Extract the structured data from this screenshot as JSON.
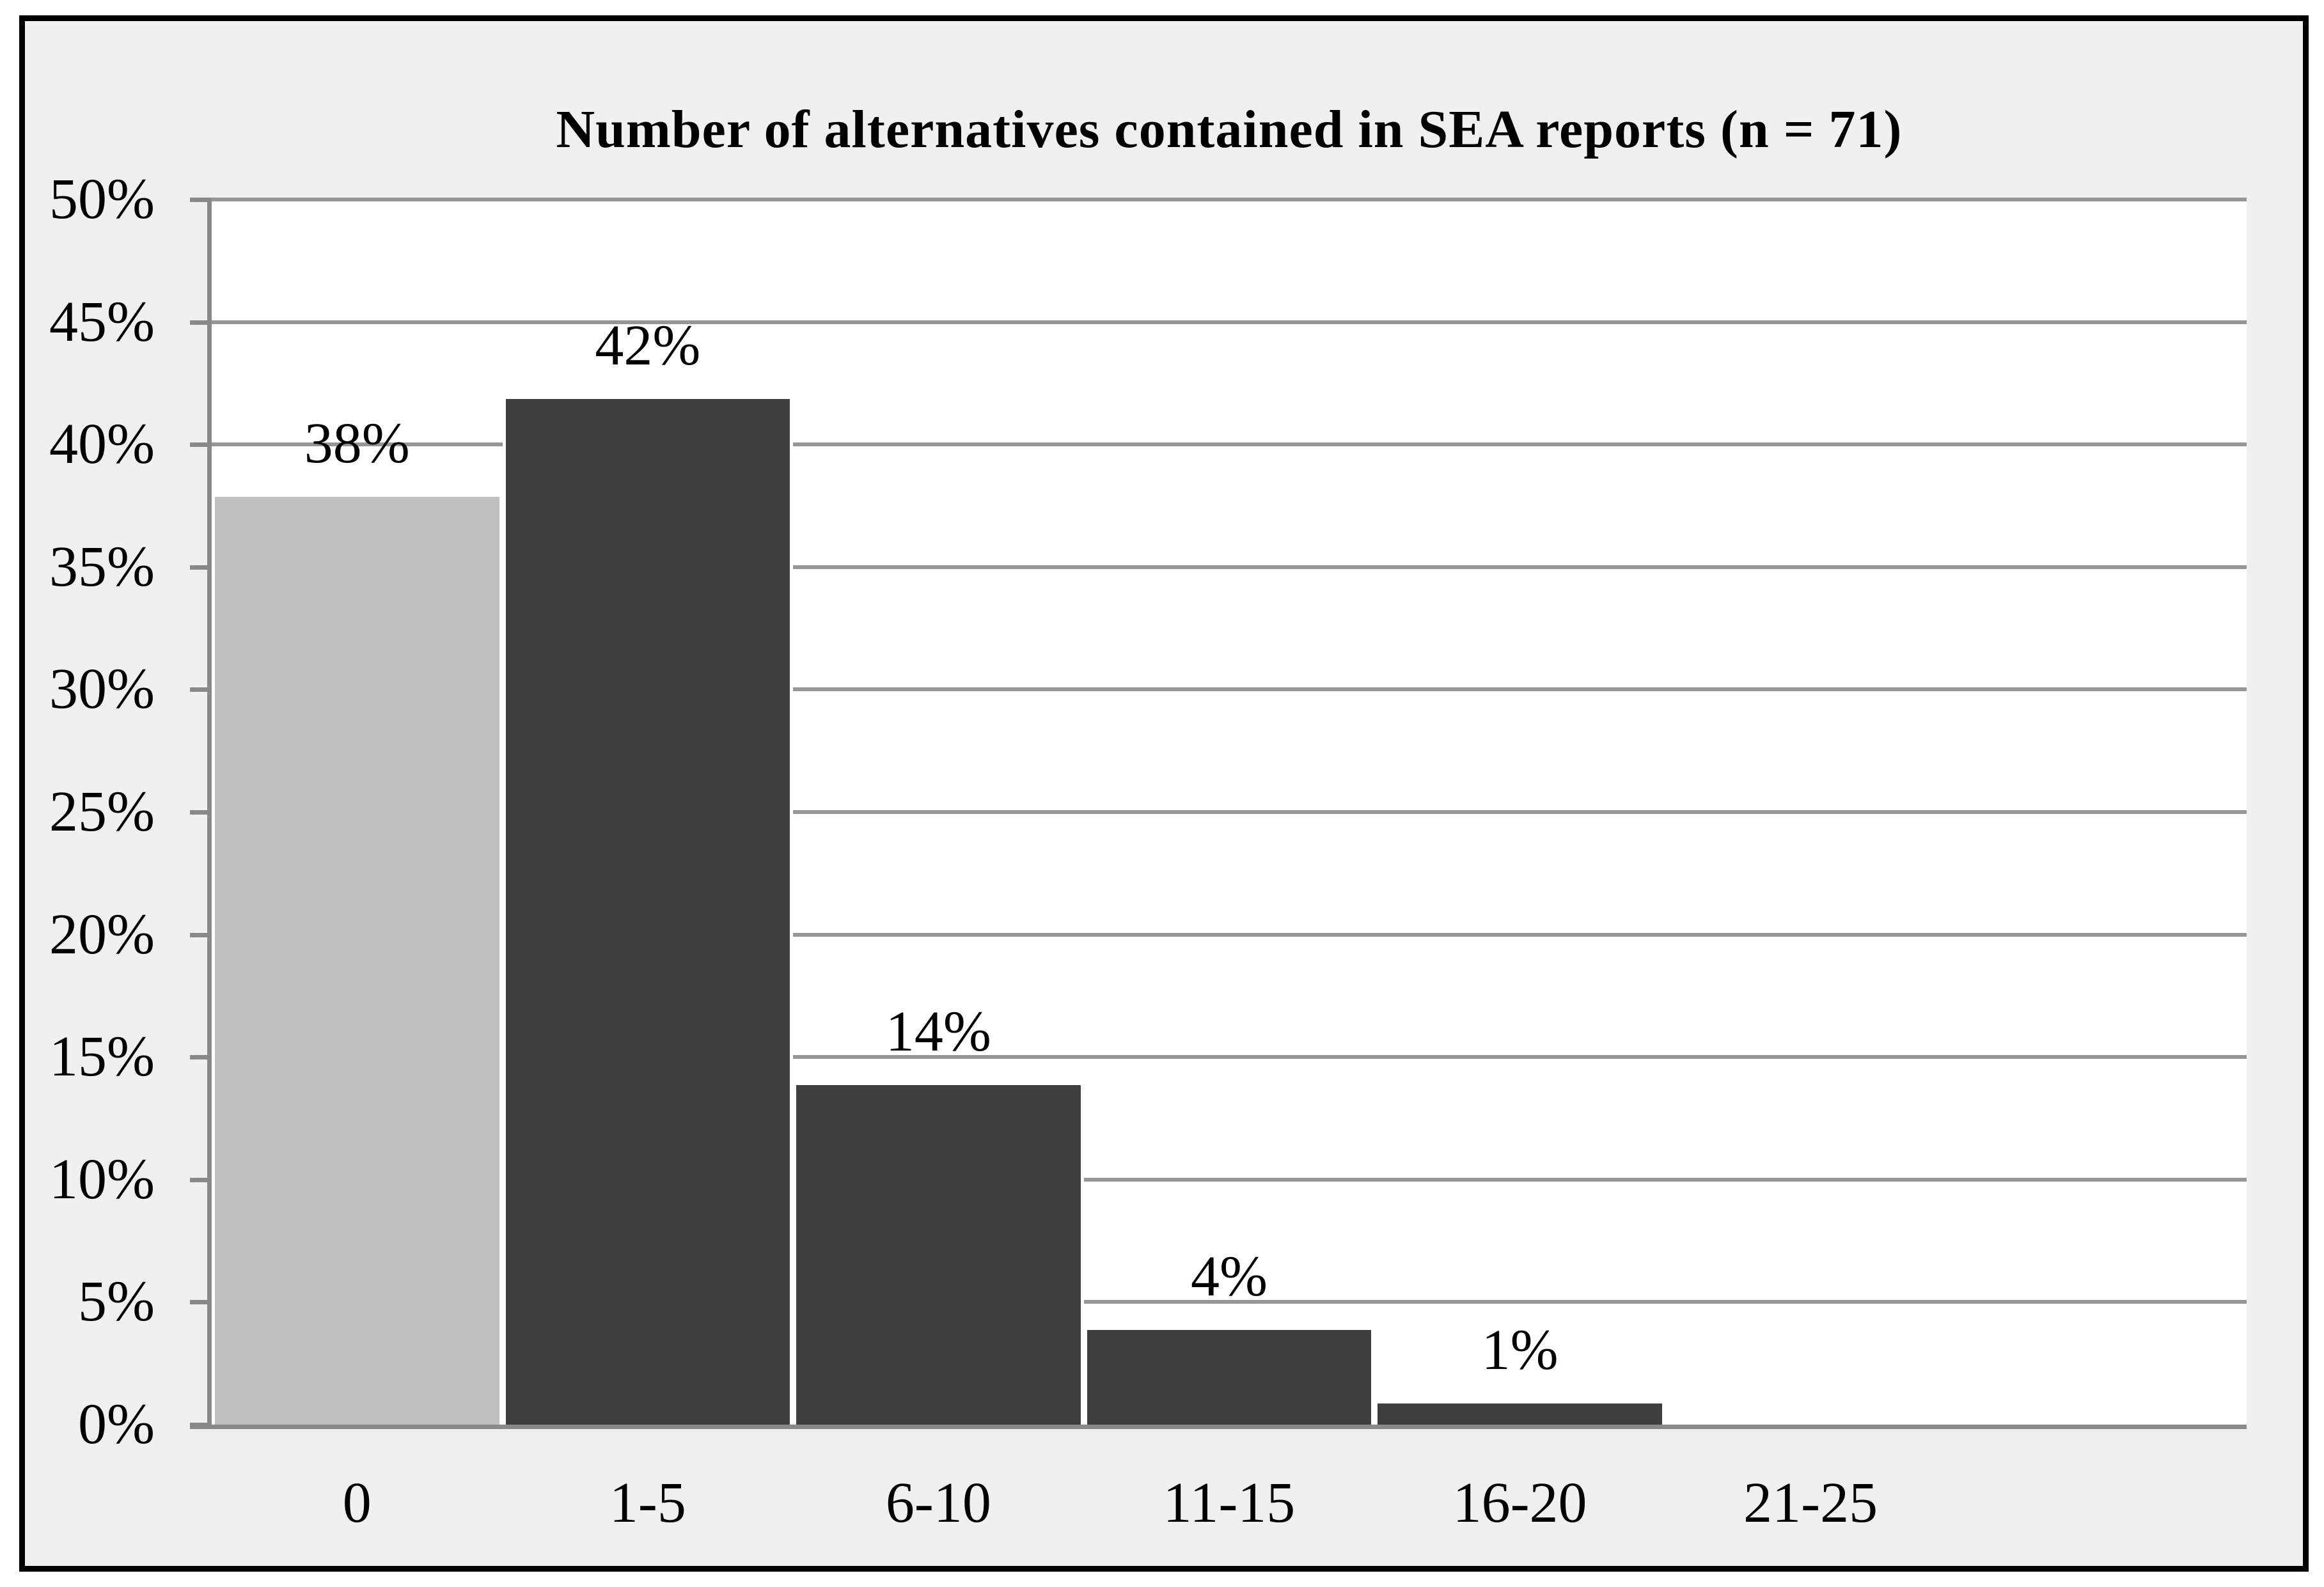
{
  "chart_data": {
    "type": "bar",
    "title": "Number of alternatives contained in SEA reports (n = 71)",
    "categories": [
      "0",
      "1-5",
      "6-10",
      "11-15",
      "16-20",
      "21-25"
    ],
    "values": [
      38,
      42,
      14,
      4,
      1,
      0
    ],
    "data_labels": [
      "38%",
      "42%",
      "14%",
      "4%",
      "1%",
      ""
    ],
    "xlabel": "",
    "ylabel": "",
    "ylim": [
      0,
      50
    ],
    "y_ticks": [
      "50%",
      "45%",
      "40%",
      "35%",
      "30%",
      "25%",
      "20%",
      "15%",
      "10%",
      "5%",
      "0%"
    ],
    "grid": true,
    "legend": "none",
    "extra_empty_slots": 1,
    "colors": {
      "bar_first": "#bfbfbf",
      "bar_rest": "#3e3e3e",
      "bar_border": "#ffffff",
      "gridline": "#969696",
      "axis": "#898989",
      "plot_background": "#ffffff",
      "figure_background": "#f0f0f0",
      "frame_border": "#000000",
      "text": "#000000"
    }
  }
}
